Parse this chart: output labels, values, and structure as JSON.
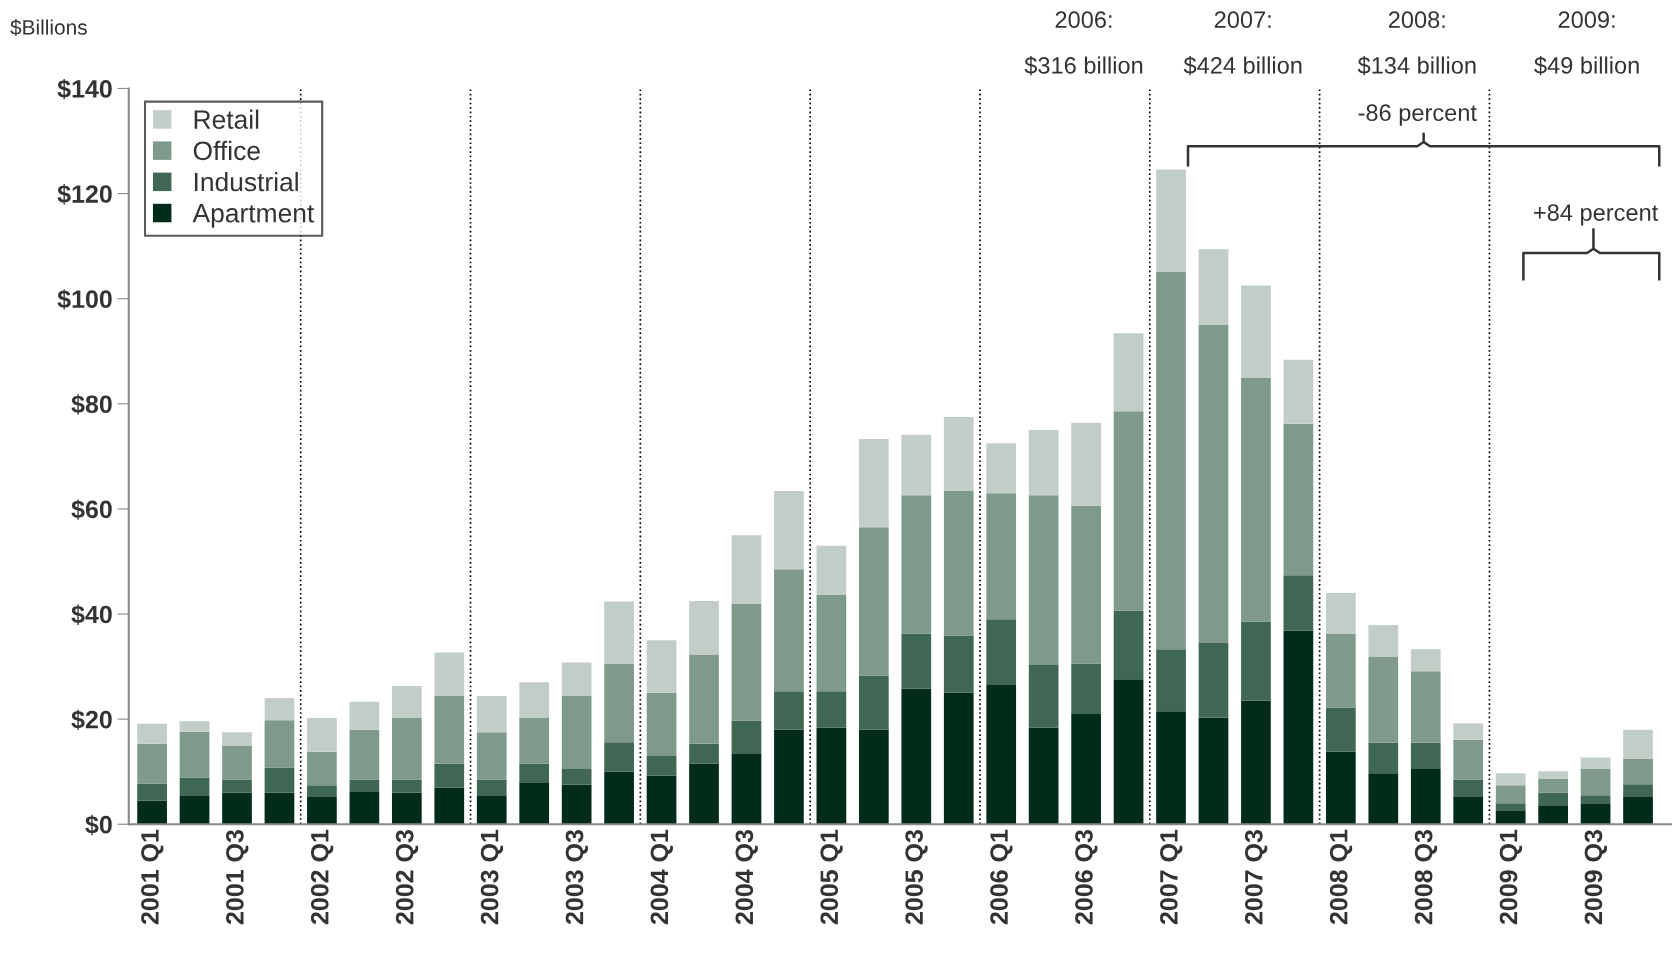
{
  "chart_data": {
    "type": "bar",
    "stacked": true,
    "ylabel": "$Billions",
    "categories": [
      "2001 Q1",
      null,
      "2001 Q3",
      null,
      "2002 Q1",
      null,
      "2002 Q3",
      null,
      "2003 Q1",
      null,
      "2003 Q3",
      null,
      "2004 Q1",
      null,
      "2004 Q3",
      null,
      "2005 Q1",
      null,
      "2005 Q3",
      null,
      "2006 Q1",
      null,
      "2006 Q3",
      null,
      "2007 Q1",
      null,
      "2007 Q3",
      null,
      "2008 Q1",
      null,
      "2008 Q3",
      null,
      "2009 Q1",
      null,
      "2009 Q3",
      null
    ],
    "series": [
      {
        "name": "Apartment",
        "color": "#022b1a",
        "values": [
          4.5,
          5.5,
          6,
          6,
          5.2,
          6.3,
          6,
          7,
          5.5,
          8,
          7.5,
          10,
          9.3,
          11.5,
          13.5,
          18,
          18.4,
          18,
          25.8,
          25,
          26.5,
          18.4,
          21,
          27.6,
          21.5,
          20.3,
          23.5,
          36.8,
          13.8,
          9.7,
          10.5,
          5.2,
          2.5,
          3.6,
          4,
          5.2
        ]
      },
      {
        "name": "Industrial",
        "color": "#406654",
        "values": [
          3.2,
          3.4,
          2.5,
          4.8,
          2.2,
          2.2,
          2.5,
          4.5,
          3,
          3.5,
          3,
          5.6,
          3.7,
          3.8,
          6.2,
          7.3,
          6.9,
          10.3,
          10.5,
          10.9,
          12.5,
          11.9,
          9.6,
          13,
          11.8,
          14.2,
          15.1,
          10.6,
          8.4,
          5.8,
          5,
          3.3,
          1.5,
          2.4,
          1.5,
          2.4
        ]
      },
      {
        "name": "Office",
        "color": "#7f9a8a",
        "values": [
          7.6,
          8.7,
          6.5,
          9,
          6.4,
          9.5,
          11.7,
          13,
          9,
          8.8,
          13.9,
          15,
          12,
          17,
          22.3,
          23.2,
          18.3,
          28.2,
          26.3,
          27.5,
          24,
          32.3,
          30,
          38,
          71.8,
          60.5,
          46.4,
          28.8,
          14.1,
          16.4,
          13.6,
          7.6,
          3.4,
          2.6,
          5,
          4.8
        ]
      },
      {
        "name": "Retail",
        "color": "#c3cdc7",
        "values": [
          3.8,
          2,
          2.5,
          4.2,
          6.4,
          5.3,
          6.1,
          8.2,
          6.9,
          6.7,
          6.4,
          11.8,
          10,
          10.2,
          13,
          14.9,
          9.4,
          16.8,
          11.5,
          14.1,
          9.5,
          12.4,
          15.8,
          14.8,
          19.5,
          14.4,
          17.5,
          12.2,
          7.7,
          6,
          4.2,
          3.1,
          2.3,
          1.5,
          2.2,
          5.6
        ]
      }
    ],
    "ylim": [
      0,
      140
    ],
    "yticks": [
      {
        "value": 0,
        "label": "$0"
      },
      {
        "value": 20,
        "label": "$20"
      },
      {
        "value": 40,
        "label": "$40"
      },
      {
        "value": 60,
        "label": "$60"
      },
      {
        "value": 80,
        "label": "$80"
      },
      {
        "value": 100,
        "label": "$100"
      },
      {
        "value": 120,
        "label": "$120"
      },
      {
        "value": 140,
        "label": "$140"
      }
    ],
    "annotations": [
      "2006:",
      "$316 billion",
      "2007:",
      "$424 billion",
      "2008:",
      "$134 billion",
      "2009:",
      "$49 billion",
      "-86 percent",
      "+84 percent"
    ],
    "legend": "top left",
    "grid": false
  }
}
